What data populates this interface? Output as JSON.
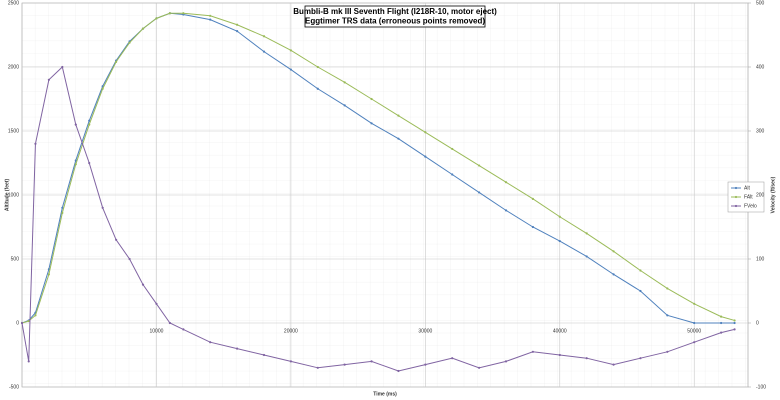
{
  "chart_data": {
    "type": "line",
    "title": "Bumbli-B mk III Seventh Flight (I218R-10, motor eject)",
    "subtitle": "Eggtimer TRS data (erroneous points removed)",
    "x_label": "Time (ms)",
    "y_label": "Altitude (feet)",
    "y2_label": "Velocity (ft/sec)",
    "x": [
      0,
      500,
      1000,
      2000,
      3000,
      4000,
      5000,
      6000,
      7000,
      8000,
      9000,
      10000,
      11000,
      12000,
      14000,
      16000,
      18000,
      20000,
      22000,
      24000,
      26000,
      28000,
      30000,
      32000,
      34000,
      36000,
      38000,
      40000,
      42000,
      44000,
      46000,
      48000,
      50000,
      52000,
      53000
    ],
    "series": [
      {
        "name": "Alt",
        "color": "#4f81bd",
        "values": [
          0,
          20,
          80,
          420,
          900,
          1270,
          1580,
          1850,
          2050,
          2200,
          2300,
          2380,
          2420,
          2410,
          2370,
          2280,
          2120,
          1980,
          1830,
          1700,
          1560,
          1440,
          1300,
          1160,
          1020,
          880,
          750,
          640,
          520,
          380,
          250,
          60,
          0,
          0,
          0
        ]
      },
      {
        "name": "FAlt",
        "color": "#9bbb59",
        "values": [
          0,
          15,
          60,
          380,
          860,
          1240,
          1550,
          1830,
          2040,
          2190,
          2300,
          2380,
          2420,
          2420,
          2400,
          2330,
          2240,
          2130,
          2000,
          1880,
          1750,
          1620,
          1490,
          1360,
          1230,
          1100,
          970,
          830,
          700,
          560,
          410,
          270,
          150,
          50,
          20
        ]
      },
      {
        "name": "FVelo",
        "color": "#8064a2",
        "axis": "y2",
        "values": [
          0,
          -60,
          280,
          380,
          400,
          310,
          250,
          180,
          130,
          100,
          60,
          30,
          0,
          -10,
          -30,
          -40,
          -50,
          -60,
          -70,
          -65,
          -60,
          -75,
          -65,
          -55,
          -70,
          -60,
          -45,
          -50,
          -55,
          -65,
          -55,
          -45,
          -30,
          -15,
          -10
        ]
      }
    ],
    "xlim": [
      0,
      54000
    ],
    "xticks": [
      10000,
      20000,
      30000,
      40000,
      50000
    ],
    "ylim": [
      -500,
      2500
    ],
    "yticks": [
      -500,
      0,
      500,
      1000,
      1500,
      2000,
      2500
    ],
    "y2lim": [
      -100,
      500
    ],
    "y2ticks": [
      -100,
      0,
      100,
      200,
      300,
      400,
      500
    ],
    "grid": true,
    "legend": "right"
  }
}
